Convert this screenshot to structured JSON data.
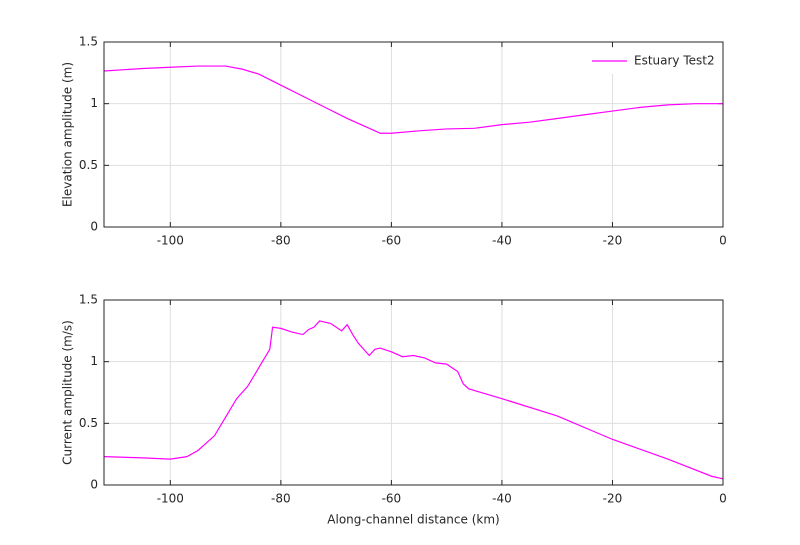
{
  "chart_data": [
    {
      "type": "line",
      "ylabel": "Elevation amplitude (m)",
      "x": [
        -112,
        -105,
        -100,
        -95,
        -90,
        -87,
        -84,
        -80,
        -76,
        -72,
        -68,
        -64,
        -62,
        -60,
        -55,
        -50,
        -45,
        -40,
        -35,
        -30,
        -25,
        -20,
        -15,
        -10,
        -5,
        0
      ],
      "series": [
        {
          "name": "Estuary Test2",
          "color": "#ff00ff",
          "values": [
            1.265,
            1.285,
            1.295,
            1.305,
            1.305,
            1.28,
            1.24,
            1.15,
            1.06,
            0.97,
            0.88,
            0.8,
            0.76,
            0.76,
            0.78,
            0.795,
            0.8,
            0.83,
            0.85,
            0.88,
            0.91,
            0.94,
            0.97,
            0.99,
            1.0,
            1.0
          ]
        }
      ],
      "xlim": [
        -112,
        0
      ],
      "xticks": [
        -100,
        -80,
        -60,
        -40,
        -20,
        0
      ],
      "ylim": [
        0,
        1.5
      ],
      "yticks": [
        0,
        0.5,
        1,
        1.5
      ],
      "grid": true,
      "legend": "upper-right"
    },
    {
      "type": "line",
      "ylabel": "Current amplitude (m/s)",
      "xlabel": "Along-channel distance (km)",
      "x": [
        -112,
        -105,
        -100,
        -97,
        -95,
        -92,
        -90,
        -88,
        -86,
        -84,
        -82,
        -81.5,
        -80,
        -78,
        -76,
        -75,
        -74,
        -73,
        -71,
        -69,
        -68,
        -67,
        -66,
        -64,
        -63,
        -62,
        -60,
        -58,
        -56,
        -54,
        -52,
        -50,
        -49,
        -48,
        -47,
        -46,
        -40,
        -30,
        -20,
        -10,
        -2,
        0
      ],
      "series": [
        {
          "color": "#ff00ff",
          "values": [
            0.23,
            0.22,
            0.21,
            0.23,
            0.28,
            0.4,
            0.55,
            0.7,
            0.8,
            0.95,
            1.1,
            1.28,
            1.27,
            1.24,
            1.22,
            1.26,
            1.28,
            1.33,
            1.31,
            1.25,
            1.3,
            1.22,
            1.15,
            1.05,
            1.1,
            1.11,
            1.08,
            1.04,
            1.05,
            1.03,
            0.99,
            0.98,
            0.95,
            0.92,
            0.82,
            0.78,
            0.7,
            0.56,
            0.37,
            0.21,
            0.07,
            0.05
          ]
        }
      ],
      "xlim": [
        -112,
        0
      ],
      "xticks": [
        -100,
        -80,
        -60,
        -40,
        -20,
        0
      ],
      "ylim": [
        0,
        1.5
      ],
      "yticks": [
        0,
        0.5,
        1,
        1.5
      ],
      "grid": true
    }
  ]
}
